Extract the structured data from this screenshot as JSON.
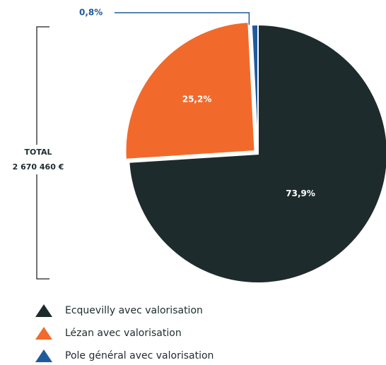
{
  "chart_data": {
    "type": "pie",
    "categories": [
      "Ecquevilly avec valorisation",
      "Lézan avec valorisation",
      "Pole général avec valorisation"
    ],
    "values": [
      73.9,
      25.2,
      0.8
    ],
    "value_labels": [
      "73,9%",
      "25,2%",
      "0,8%"
    ],
    "colors": [
      "#1e2b2c",
      "#f26a2b",
      "#1f5a9e"
    ],
    "annotations": [
      "TOTAL",
      "2 670 460 €"
    ]
  }
}
